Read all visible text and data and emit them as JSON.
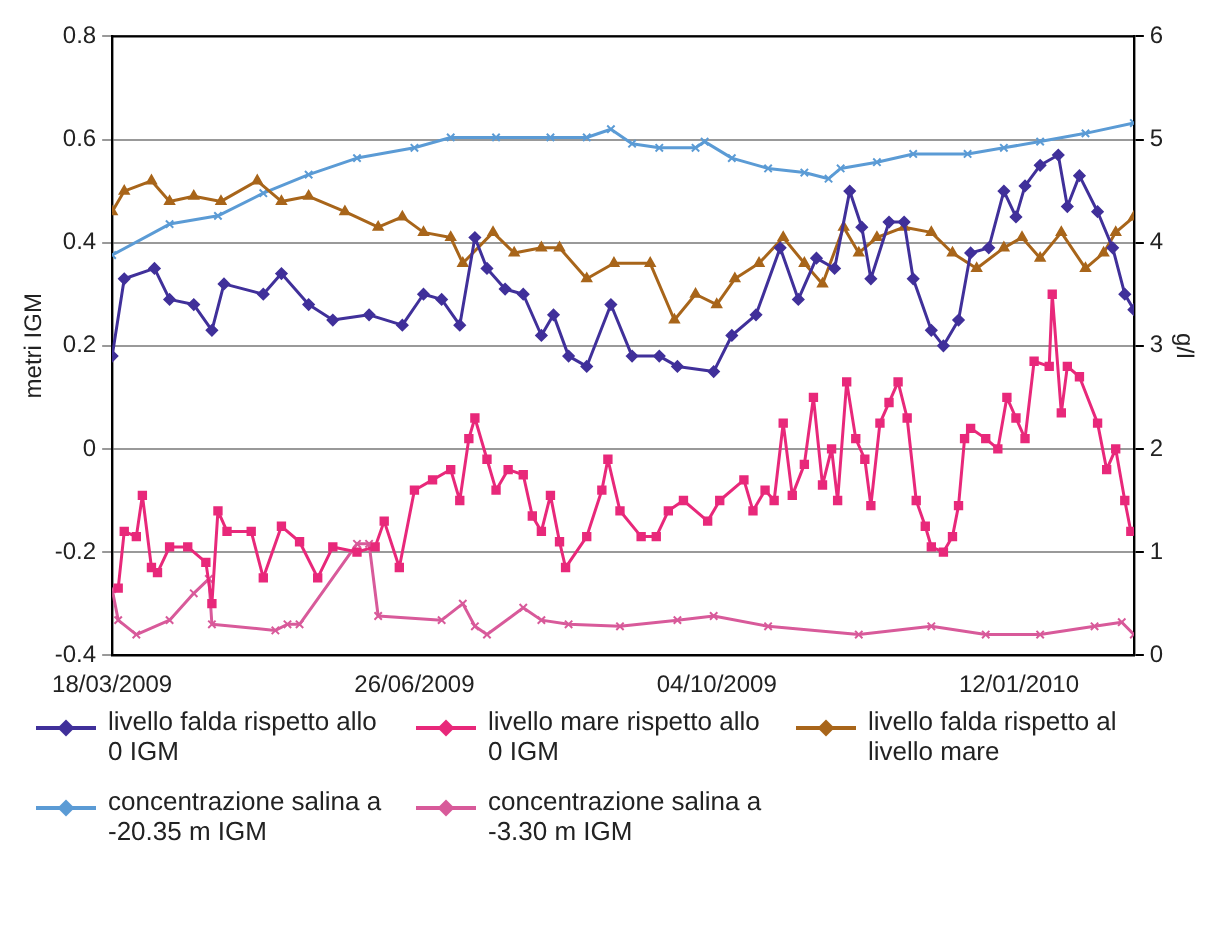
{
  "chart_data": {
    "type": "line",
    "ylabel": "metri IGM",
    "y2label": "g/l",
    "xlim": [
      "2009-03-18",
      "2010-02-19"
    ],
    "xticks": [
      {
        "value": "2009-03-18",
        "label": "18/03/2009"
      },
      {
        "value": "2009-06-26",
        "label": "26/06/2009"
      },
      {
        "value": "2009-10-04",
        "label": "04/10/2009"
      },
      {
        "value": "2010-01-12",
        "label": "12/01/2010"
      }
    ],
    "ylim": [
      -0.4,
      0.8
    ],
    "yticks": [
      -0.4,
      -0.2,
      0,
      0.2,
      0.4,
      0.6,
      0.8
    ],
    "y2lim": [
      0,
      6
    ],
    "y2ticks": [
      0,
      1,
      2,
      3,
      4,
      5,
      6
    ],
    "grid": "y",
    "legend": "bottom",
    "line_style": "solid",
    "series": [
      {
        "name": "livello falda rispetto allo 0 IGM",
        "color": "#40309a",
        "marker": "diamond",
        "x": [
          "2009-03-18",
          "2009-03-22",
          "2009-04-01",
          "2009-04-06",
          "2009-04-14",
          "2009-04-20",
          "2009-04-24",
          "2009-05-07",
          "2009-05-13",
          "2009-05-22",
          "2009-05-30",
          "2009-06-11",
          "2009-06-22",
          "2009-06-29",
          "2009-07-05",
          "2009-07-11",
          "2009-07-16",
          "2009-07-20",
          "2009-07-26",
          "2009-08-01",
          "2009-08-07",
          "2009-08-11",
          "2009-08-16",
          "2009-08-22",
          "2009-08-30",
          "2009-09-06",
          "2009-09-15",
          "2009-09-21",
          "2009-10-03",
          "2009-10-09",
          "2009-10-17",
          "2009-10-25",
          "2009-10-31",
          "2009-11-06",
          "2009-11-12",
          "2009-11-17",
          "2009-11-21",
          "2009-11-24",
          "2009-11-30",
          "2009-12-05",
          "2009-12-08",
          "2009-12-14",
          "2009-12-18",
          "2009-12-23",
          "2009-12-27",
          "2010-01-02",
          "2010-01-07",
          "2010-01-11",
          "2010-01-14",
          "2010-01-19",
          "2010-01-25",
          "2010-01-28",
          "2010-02-01",
          "2010-02-07",
          "2010-02-12",
          "2010-02-16",
          "2010-02-19"
        ],
        "values": [
          0.18,
          0.33,
          0.35,
          0.29,
          0.28,
          0.23,
          0.32,
          0.3,
          0.34,
          0.28,
          0.25,
          0.26,
          0.24,
          0.3,
          0.29,
          0.24,
          0.41,
          0.35,
          0.31,
          0.3,
          0.22,
          0.26,
          0.18,
          0.16,
          0.28,
          0.18,
          0.18,
          0.16,
          0.15,
          0.22,
          0.26,
          0.39,
          0.29,
          0.37,
          0.35,
          0.5,
          0.43,
          0.33,
          0.44,
          0.44,
          0.33,
          0.23,
          0.2,
          0.25,
          0.38,
          0.39,
          0.5,
          0.45,
          0.51,
          0.55,
          0.57,
          0.47,
          0.53,
          0.46,
          0.39,
          0.3,
          0.27
        ]
      },
      {
        "name": "livello mare rispetto allo 0 IGM",
        "color": "#e8287a",
        "marker": "square",
        "x": [
          "2009-03-20",
          "2009-03-22",
          "2009-03-26",
          "2009-03-28",
          "2009-03-31",
          "2009-04-02",
          "2009-04-06",
          "2009-04-12",
          "2009-04-18",
          "2009-04-20",
          "2009-04-22",
          "2009-04-25",
          "2009-05-03",
          "2009-05-07",
          "2009-05-13",
          "2009-05-19",
          "2009-05-25",
          "2009-05-30",
          "2009-06-07",
          "2009-06-13",
          "2009-06-16",
          "2009-06-21",
          "2009-06-26",
          "2009-07-02",
          "2009-07-08",
          "2009-07-11",
          "2009-07-14",
          "2009-07-16",
          "2009-07-20",
          "2009-07-23",
          "2009-07-27",
          "2009-08-01",
          "2009-08-04",
          "2009-08-07",
          "2009-08-10",
          "2009-08-13",
          "2009-08-15",
          "2009-08-22",
          "2009-08-27",
          "2009-08-29",
          "2009-09-02",
          "2009-09-09",
          "2009-09-14",
          "2009-09-18",
          "2009-09-23",
          "2009-10-01",
          "2009-10-05",
          "2009-10-13",
          "2009-10-16",
          "2009-10-20",
          "2009-10-23",
          "2009-10-26",
          "2009-10-29",
          "2009-11-02",
          "2009-11-05",
          "2009-11-08",
          "2009-11-11",
          "2009-11-13",
          "2009-11-16",
          "2009-11-19",
          "2009-11-22",
          "2009-11-24",
          "2009-11-27",
          "2009-11-30",
          "2009-12-03",
          "2009-12-06",
          "2009-12-09",
          "2009-12-12",
          "2009-12-14",
          "2009-12-18",
          "2009-12-21",
          "2009-12-23",
          "2009-12-25",
          "2009-12-27",
          "2010-01-01",
          "2010-01-05",
          "2010-01-08",
          "2010-01-11",
          "2010-01-14",
          "2010-01-17",
          "2010-01-22",
          "2010-01-23",
          "2010-01-26",
          "2010-01-28",
          "2010-02-01",
          "2010-02-07",
          "2010-02-10",
          "2010-02-13",
          "2010-02-16",
          "2010-02-18"
        ],
        "values": [
          -0.27,
          -0.16,
          -0.17,
          -0.09,
          -0.23,
          -0.24,
          -0.19,
          -0.19,
          -0.22,
          -0.3,
          -0.12,
          -0.16,
          -0.16,
          -0.25,
          -0.15,
          -0.18,
          -0.25,
          -0.19,
          -0.2,
          -0.19,
          -0.14,
          -0.23,
          -0.08,
          -0.06,
          -0.04,
          -0.1,
          0.02,
          0.06,
          -0.02,
          -0.08,
          -0.04,
          -0.05,
          -0.13,
          -0.16,
          -0.09,
          -0.18,
          -0.23,
          -0.17,
          -0.08,
          -0.02,
          -0.12,
          -0.17,
          -0.17,
          -0.12,
          -0.1,
          -0.14,
          -0.1,
          -0.06,
          -0.12,
          -0.08,
          -0.1,
          0.05,
          -0.09,
          -0.03,
          0.1,
          -0.07,
          0,
          -0.1,
          0.13,
          0.02,
          -0.02,
          -0.11,
          0.05,
          0.09,
          0.13,
          0.06,
          -0.1,
          -0.15,
          -0.19,
          -0.2,
          -0.17,
          -0.11,
          0.02,
          0.04,
          0.02,
          0,
          0.1,
          0.06,
          0.02,
          0.17,
          0.16,
          0.3,
          0.07,
          0.16,
          0.14,
          0.05,
          -0.04,
          0,
          -0.1,
          -0.16
        ]
      },
      {
        "name": "livello falda rispetto al livello mare",
        "color": "#a8651a",
        "marker": "triangle",
        "x": [
          "2009-03-18",
          "2009-03-22",
          "2009-03-31",
          "2009-04-06",
          "2009-04-14",
          "2009-04-23",
          "2009-05-05",
          "2009-05-13",
          "2009-05-22",
          "2009-06-03",
          "2009-06-14",
          "2009-06-22",
          "2009-06-29",
          "2009-07-08",
          "2009-07-12",
          "2009-07-22",
          "2009-07-29",
          "2009-08-07",
          "2009-08-13",
          "2009-08-22",
          "2009-08-31",
          "2009-09-12",
          "2009-09-20",
          "2009-09-27",
          "2009-10-04",
          "2009-10-10",
          "2009-10-18",
          "2009-10-26",
          "2009-11-02",
          "2009-11-08",
          "2009-11-15",
          "2009-11-20",
          "2009-11-26",
          "2009-12-05",
          "2009-12-14",
          "2009-12-21",
          "2009-12-29",
          "2010-01-07",
          "2010-01-13",
          "2010-01-19",
          "2010-01-26",
          "2010-02-03",
          "2010-02-09",
          "2010-02-13",
          "2010-02-19"
        ],
        "values": [
          0.46,
          0.5,
          0.52,
          0.48,
          0.49,
          0.48,
          0.52,
          0.48,
          0.49,
          0.46,
          0.43,
          0.45,
          0.42,
          0.41,
          0.36,
          0.42,
          0.38,
          0.39,
          0.39,
          0.33,
          0.36,
          0.36,
          0.25,
          0.3,
          0.28,
          0.33,
          0.36,
          0.41,
          0.36,
          0.32,
          0.43,
          0.38,
          0.41,
          0.43,
          0.42,
          0.38,
          0.35,
          0.39,
          0.41,
          0.37,
          0.42,
          0.35,
          0.38,
          0.42,
          0.45
        ]
      },
      {
        "name": "concentrazione salina a -20.35 m IGM",
        "color": "#5b9bd5",
        "marker": "cross",
        "axis": "y2",
        "x": [
          "2009-03-18",
          "2009-04-06",
          "2009-04-22",
          "2009-05-07",
          "2009-05-22",
          "2009-06-07",
          "2009-06-26",
          "2009-07-08",
          "2009-07-23",
          "2009-08-10",
          "2009-08-22",
          "2009-08-30",
          "2009-09-06",
          "2009-09-15",
          "2009-09-27",
          "2009-09-30",
          "2009-10-09",
          "2009-10-21",
          "2009-11-02",
          "2009-11-10",
          "2009-11-14",
          "2009-11-26",
          "2009-12-08",
          "2009-12-26",
          "2010-01-07",
          "2010-01-19",
          "2010-02-03",
          "2010-02-19"
        ],
        "values": [
          3.88,
          4.18,
          4.26,
          4.48,
          4.66,
          4.82,
          4.92,
          5.02,
          5.02,
          5.02,
          5.02,
          5.1,
          4.96,
          4.92,
          4.92,
          4.98,
          4.82,
          4.72,
          4.68,
          4.62,
          4.72,
          4.78,
          4.86,
          4.86,
          4.92,
          4.98,
          5.06,
          5.16
        ]
      },
      {
        "name": "concentrazione salina a -3.30 m IGM",
        "color": "#d85a9a",
        "marker": "cross",
        "axis": "y2",
        "x": [
          "2009-03-18",
          "2009-03-20",
          "2009-03-26",
          "2009-04-06",
          "2009-04-14",
          "2009-04-19",
          "2009-04-20",
          "2009-05-11",
          "2009-05-15",
          "2009-05-19",
          "2009-06-07",
          "2009-06-11",
          "2009-06-14",
          "2009-07-05",
          "2009-07-12",
          "2009-07-16",
          "2009-07-20",
          "2009-08-01",
          "2009-08-07",
          "2009-08-16",
          "2009-09-02",
          "2009-09-21",
          "2009-10-03",
          "2009-10-21",
          "2009-11-20",
          "2009-12-14",
          "2010-01-01",
          "2010-01-19",
          "2010-02-06",
          "2010-02-15",
          "2010-02-19"
        ],
        "values": [
          0.64,
          0.34,
          0.2,
          0.34,
          0.6,
          0.74,
          0.3,
          0.24,
          0.3,
          0.3,
          1.08,
          1.08,
          0.38,
          0.34,
          0.5,
          0.28,
          0.2,
          0.46,
          0.34,
          0.3,
          0.28,
          0.34,
          0.38,
          0.28,
          0.2,
          0.28,
          0.2,
          0.2,
          0.28,
          0.32,
          0.2
        ]
      }
    ]
  }
}
